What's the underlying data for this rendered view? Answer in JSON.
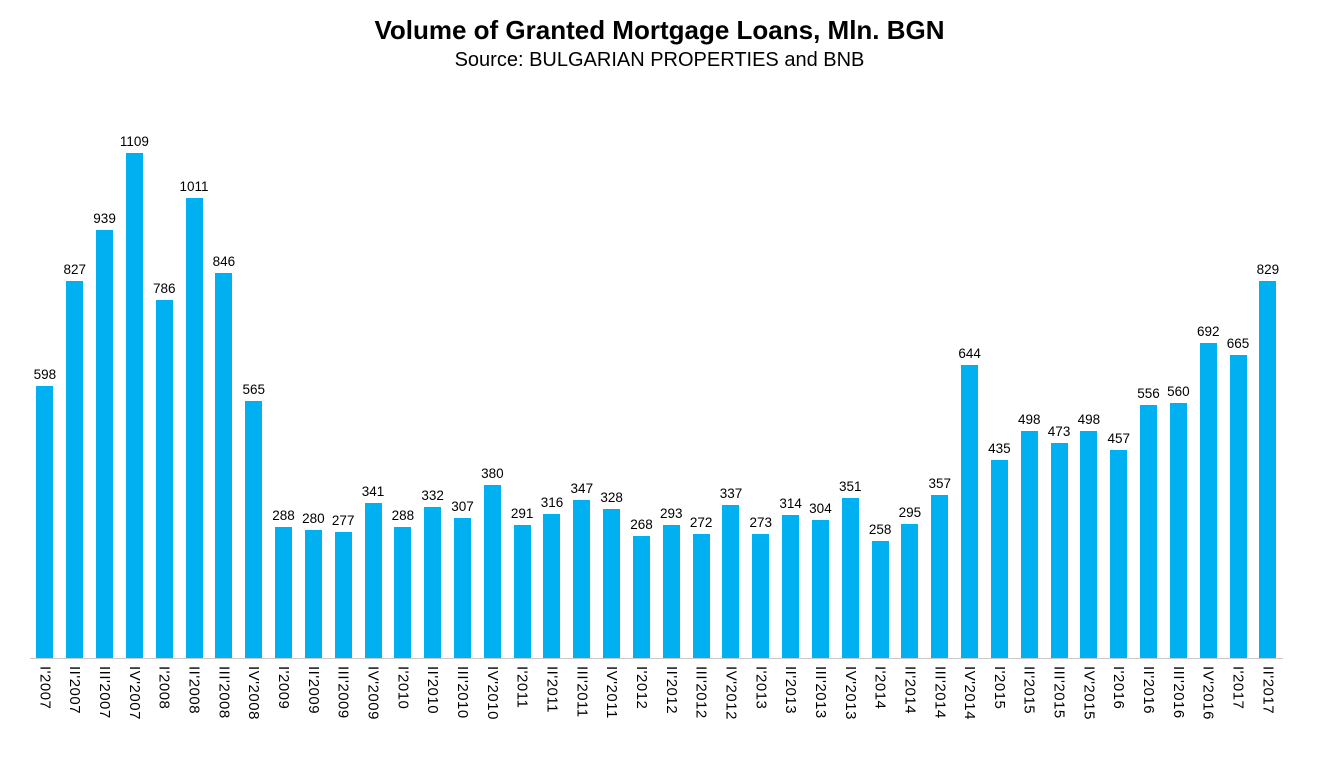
{
  "chart_data": {
    "type": "bar",
    "title": "Volume of Granted Mortgage Loans, Mln. BGN",
    "subtitle": "Source: BULGARIAN PROPERTIES and BNB",
    "categories": [
      "I'2007",
      "II'2007",
      "III'2007",
      "IV'2007",
      "I'2008",
      "II'2008",
      "III'2008",
      "IV'2008",
      "I'2009",
      "II'2009",
      "III'2009",
      "IV'2009",
      "I'2010",
      "II'2010",
      "III'2010",
      "IV'2010",
      "I'2011",
      "II'2011",
      "III'2011",
      "IV'2011",
      "I'2012",
      "II'2012",
      "III'2012",
      "IV'2012",
      "I'2013",
      "II'2013",
      "III'2013",
      "IV'2013",
      "I'2014",
      "II'2014",
      "III'2014",
      "IV'2014",
      "I'2015",
      "II'2015",
      "III'2015",
      "IV'2015",
      "I'2016",
      "II'2016",
      "III'2016",
      "IV'2016",
      "I'2017",
      "II'2017"
    ],
    "values": [
      598,
      827,
      939,
      1109,
      786,
      1011,
      846,
      565,
      288,
      280,
      277,
      341,
      288,
      332,
      307,
      380,
      291,
      316,
      347,
      328,
      268,
      293,
      272,
      337,
      273,
      314,
      304,
      351,
      258,
      295,
      357,
      644,
      435,
      498,
      473,
      498,
      457,
      556,
      560,
      692,
      665,
      829
    ],
    "xlabel": "",
    "ylabel": "",
    "ylim": [
      0,
      1109
    ],
    "bar_color": "#00b0f0",
    "label_color": "#000000",
    "grid": false,
    "legend": false,
    "value_labels": "above bars",
    "x_label_orientation": "vertical"
  }
}
